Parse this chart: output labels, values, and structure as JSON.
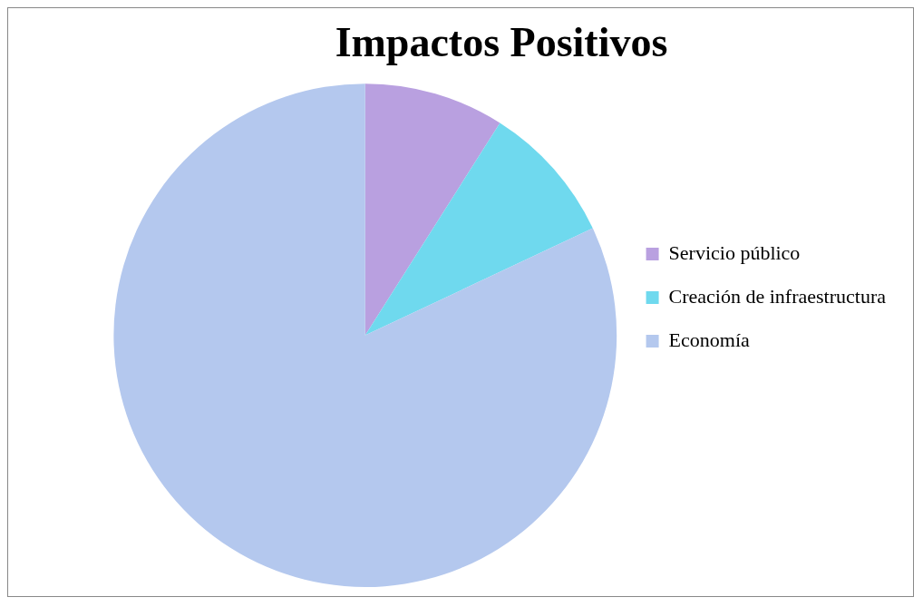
{
  "chart_data": {
    "type": "pie",
    "title": "Impactos Positivos",
    "categories": [
      "Servicio público",
      "Creación de infraestructura",
      "Economía"
    ],
    "values": [
      9,
      9,
      82
    ],
    "colors": [
      "#b9a0e0",
      "#6fd9ee",
      "#b4c8ee"
    ],
    "legend": "right"
  }
}
